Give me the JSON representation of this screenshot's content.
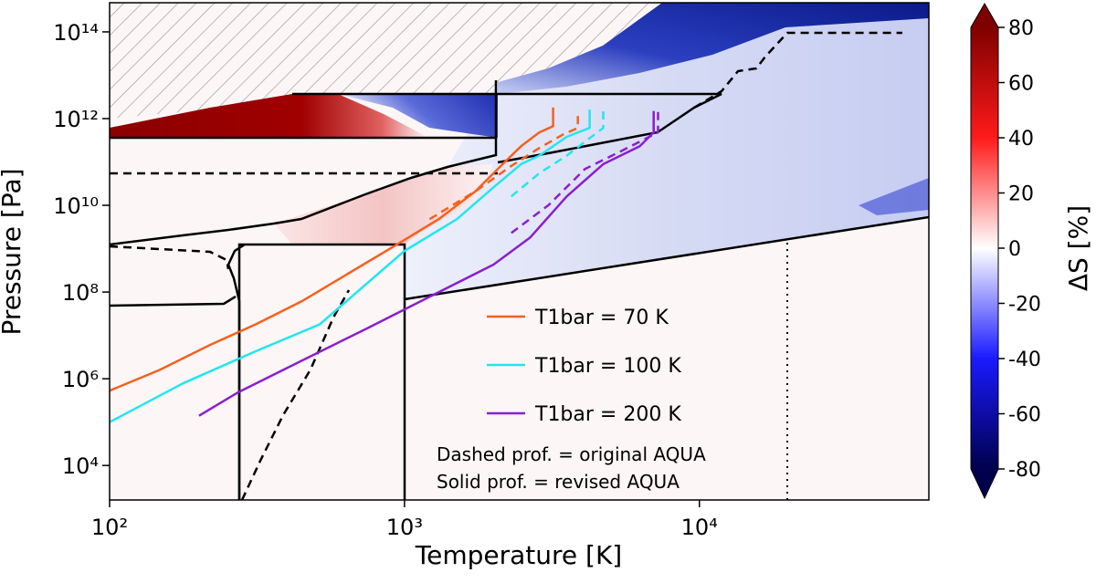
{
  "chart_data": {
    "type": "line",
    "x_label": "Temperature [K]",
    "y_label": "Pressure [Pa]",
    "log_x": true,
    "log_y": true,
    "xlim": [
      100,
      60000
    ],
    "ylim": [
      1600,
      470000000000000.0
    ],
    "xticks": [
      {
        "value": 100,
        "label": "10²"
      },
      {
        "value": 1000,
        "label": "10³"
      },
      {
        "value": 10000,
        "label": "10⁴"
      }
    ],
    "yticks": [
      {
        "value": 10000,
        "label": "10⁴"
      },
      {
        "value": 1000000,
        "label": "10⁶"
      },
      {
        "value": 100000000,
        "label": "10⁸"
      },
      {
        "value": 10000000000,
        "label": "10¹⁰"
      },
      {
        "value": 1000000000000,
        "label": "10¹²"
      },
      {
        "value": 100000000000000,
        "label": "10¹⁴"
      }
    ],
    "series": [
      {
        "name": "T1bar = 70 K",
        "color": "#f4601e",
        "style": "solid",
        "x": [
          100,
          148,
          219,
          313,
          448,
          640,
          914,
          1306,
          1740,
          2153,
          2484,
          2866,
          3191,
          3191
        ],
        "y": [
          530000.0,
          1600000.0,
          6000000.0,
          18000000.0,
          61000000.0,
          260000000.0,
          1100000000.0,
          4800000000.0,
          21000000000.0,
          89000000000.0,
          230000000000.0,
          480000000000.0,
          670000000000.0,
          1800000000000.0
        ]
      },
      {
        "name": "T1bar = 100 K",
        "color": "#22e6ee",
        "style": "solid",
        "x": [
          100,
          177,
          313,
          516,
          1000,
          1506,
          2004,
          2484,
          2866,
          3548,
          4246,
          4246
        ],
        "y": [
          100000.0,
          780000.0,
          4300000.0,
          18000000.0,
          890000000.0,
          4800000000.0,
          26000000000.0,
          89000000000.0,
          140000000000.0,
          380000000000.0,
          610000000000.0,
          1600000000000.0
        ]
      },
      {
        "name": "T1bar = 200 K",
        "color": "#8a1fd0",
        "style": "solid",
        "x": [
          201,
          272,
          448,
          738,
          1217,
          2004,
          2667,
          3548,
          4721,
          6280,
          7000,
          7000
        ],
        "y": [
          140000.0,
          480000.0,
          2600000.0,
          14000000.0,
          78000000.0,
          430000000.0,
          1800000000.0,
          16000000000.0,
          89000000000.0,
          230000000000.0,
          480000000000.0,
          1500000000000.0
        ]
      },
      {
        "color": "#f4601e",
        "style": "dashed",
        "x": [
          1217,
          1740,
          2302,
          2866,
          3428,
          3873,
          3873
        ],
        "y": [
          4800000000.0,
          21000000000.0,
          81000000000.0,
          210000000000.0,
          420000000000.0,
          610000000000.0,
          1300000000000.0
        ]
      },
      {
        "color": "#22e6ee",
        "style": "dashed",
        "x": [
          2302,
          2866,
          3548,
          4721,
          4721
        ],
        "y": [
          16000000000.0,
          55000000000.0,
          140000000000.0,
          610000000000.0,
          1500000000000.0
        ]
      },
      {
        "color": "#8a1fd0",
        "style": "dashed",
        "x": [
          2302,
          3076,
          4093,
          5445,
          7244,
          7244
        ],
        "y": [
          2300000000.0,
          10000000000.0,
          69000000000.0,
          180000000000.0,
          480000000000.0,
          1500000000000.0
        ]
      }
    ],
    "annotations": [
      "Dashed prof. = original AQUA",
      "Solid prof. = revised AQUA"
    ],
    "colorbar": {
      "label": "ΔS [%]",
      "clim": [
        -80,
        80
      ],
      "ticks": [
        -80,
        -60,
        -40,
        -20,
        0,
        20,
        40,
        60,
        80
      ]
    }
  }
}
